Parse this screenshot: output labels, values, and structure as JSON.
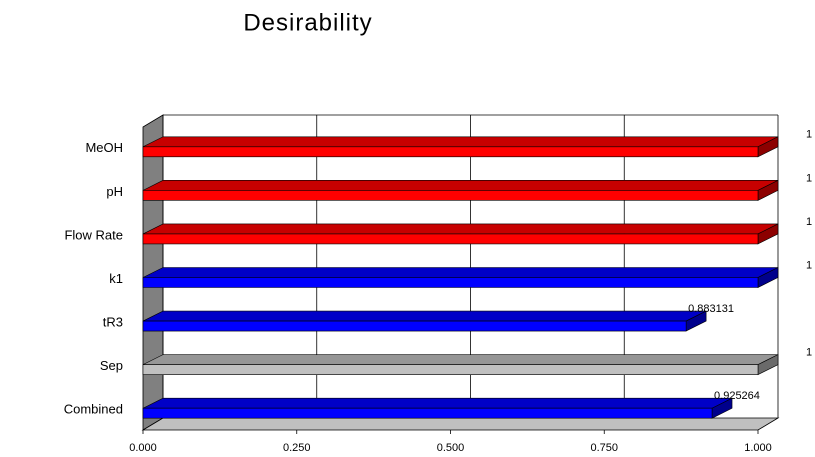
{
  "chart_data": {
    "type": "bar3d",
    "orientation": "horizontal",
    "title": "Desirability",
    "categories": [
      "MeOH",
      "pH",
      "Flow Rate",
      "k1",
      "tR3",
      "Sep",
      "Combined"
    ],
    "values": [
      1,
      1,
      1,
      1,
      0.883131,
      1,
      0.925264
    ],
    "colors": [
      "#ff0000",
      "#ff0000",
      "#ff0000",
      "#0000ff",
      "#0000ff",
      "#c0c0c0",
      "#0000ff"
    ],
    "xlim": [
      0,
      1
    ],
    "xticks": [
      {
        "value": 0,
        "label": "0.000"
      },
      {
        "value": 0.25,
        "label": "0.250"
      },
      {
        "value": 0.5,
        "label": "0.500"
      },
      {
        "value": 0.75,
        "label": "0.750"
      },
      {
        "value": 1,
        "label": "1.000"
      }
    ],
    "grid": true
  }
}
